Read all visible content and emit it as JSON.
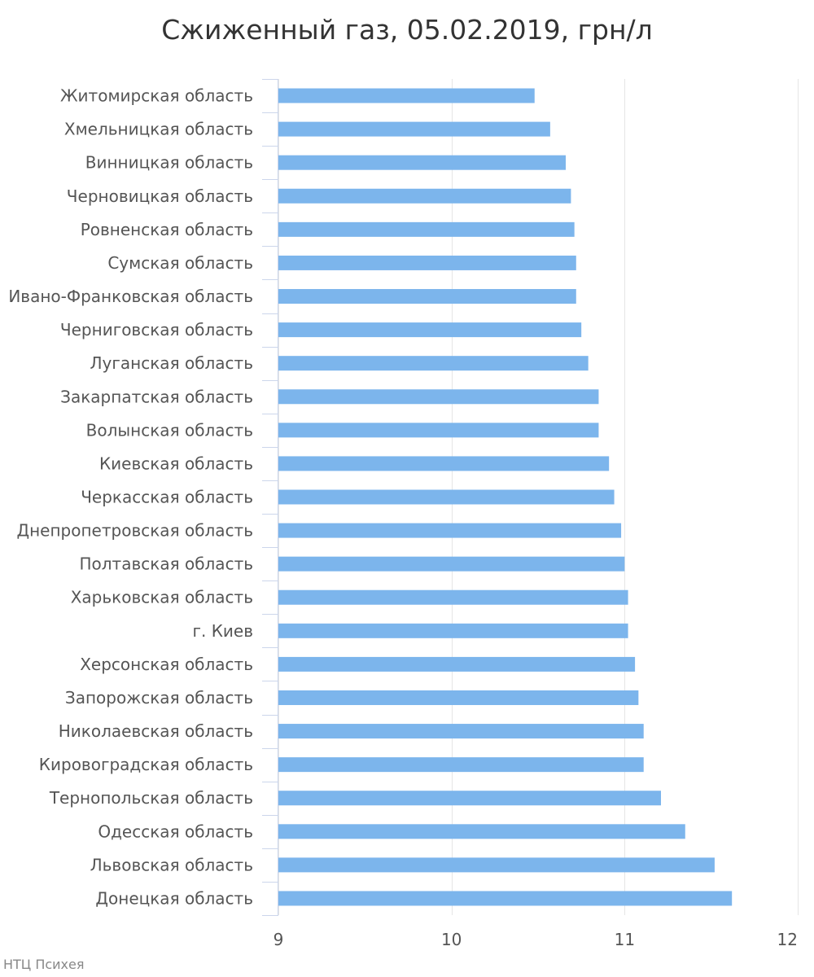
{
  "chart_data": {
    "type": "bar",
    "orientation": "horizontal",
    "title": "Сжиженный газ, 05.02.2019, грн/л",
    "xlim": [
      9,
      12
    ],
    "xticks": [
      9,
      10,
      11,
      12
    ],
    "grid": true,
    "legend": "none",
    "bar_color": "#7cb5ec",
    "categories": [
      "Житомирская область",
      "Хмельницкая область",
      "Винницкая область",
      "Черновицкая область",
      "Ровненская область",
      "Сумская область",
      "Ивано-Франковская область",
      "Черниговская область",
      "Луганская область",
      "Закарпатская область",
      "Волынская область",
      "Киевская область",
      "Черкасская область",
      "Днепропетровская область",
      "Полтавская область",
      "Харьковская область",
      "г. Киев",
      "Херсонская область",
      "Запорожская область",
      "Николаевская область",
      "Кировоградская область",
      "Тернопольская область",
      "Одесская область",
      "Львовская область",
      "Донецкая область"
    ],
    "values": [
      10.48,
      10.57,
      10.66,
      10.69,
      10.71,
      10.72,
      10.72,
      10.75,
      10.79,
      10.85,
      10.85,
      10.91,
      10.94,
      10.98,
      11.0,
      11.02,
      11.02,
      11.06,
      11.08,
      11.11,
      11.11,
      11.21,
      11.35,
      11.52,
      11.62
    ]
  },
  "credits": "НТЦ Психея"
}
